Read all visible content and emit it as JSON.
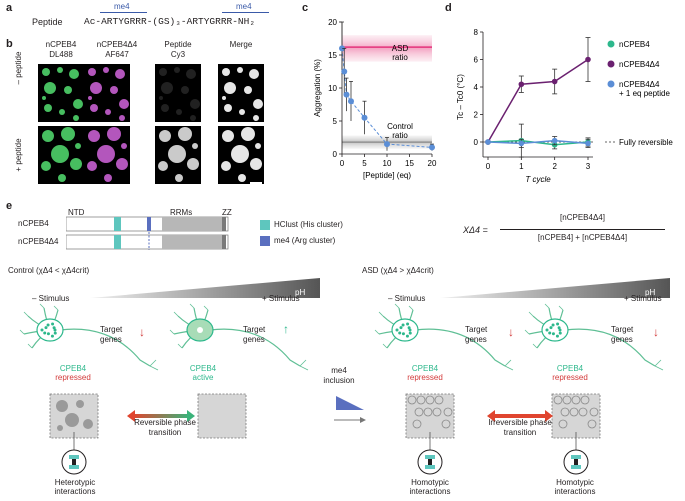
{
  "panel_labels": {
    "a": "a",
    "b": "b",
    "c": "c",
    "d": "d",
    "e": "e"
  },
  "panel_a": {
    "label": "Peptide",
    "sequence": "Ac-ARTYGRRR-(GS)₃-ARTYGRRR-NH₂",
    "motif": "me4"
  },
  "panel_b": {
    "col_headers": [
      {
        "line1": "nCPEB4",
        "line2": "DL488"
      },
      {
        "line1": "nCPEB4Δ4",
        "line2": "AF647"
      },
      {
        "line1": "Peptide",
        "line2": "Cy3"
      },
      {
        "line1": "Merge",
        "line2": ""
      }
    ],
    "row_labels": [
      "– peptide",
      "+ peptide"
    ],
    "colors": {
      "green": "#4fd36a",
      "magenta": "#c65fd0",
      "grey": "#d8d8d8",
      "white": "#ffffff"
    }
  },
  "chart_data": [
    {
      "type": "scatter",
      "xlabel": "[Peptide] (eq)",
      "ylabel": "Aggregation (%)",
      "xticks": [
        0,
        5,
        10,
        15,
        20
      ],
      "yticks": [
        0,
        5,
        10,
        15,
        20
      ],
      "xlim": [
        0,
        20
      ],
      "ylim": [
        0,
        20
      ],
      "grid": false,
      "series": [
        {
          "name": "",
          "x": [
            0,
            0.5,
            1,
            2,
            5,
            10,
            20
          ],
          "y": [
            16,
            12.5,
            9,
            8,
            5.5,
            1.5,
            1
          ],
          "err": [
            4,
            3.5,
            2.5,
            3,
            2.5,
            1,
            0.5
          ],
          "color": "#5b8ed6"
        }
      ],
      "reference_lines": [
        {
          "name": "ASD ratio",
          "y": 16.2,
          "color": "#e4337b",
          "band": [
            14,
            18
          ]
        },
        {
          "name": "Control ratio",
          "y": 1.8,
          "color": "#999999",
          "band": [
            0.8,
            2.8
          ]
        }
      ]
    },
    {
      "type": "line",
      "xlabel": "T cycle",
      "ylabel": "Tc – Tc0 (°C)",
      "xticks": [
        0,
        1,
        2,
        3
      ],
      "yticks": [
        0,
        2,
        4,
        6,
        8
      ],
      "xlim": [
        0,
        3
      ],
      "ylim": [
        0,
        8
      ],
      "grid": false,
      "legend_position": "right",
      "series": [
        {
          "name": "nCPEB4",
          "x": [
            0,
            1,
            2,
            3
          ],
          "y": [
            0,
            0.1,
            -0.2,
            0
          ],
          "err": [
            0,
            1.2,
            0.3,
            0.3
          ],
          "color": "#2db88c"
        },
        {
          "name": "nCPEB4Δ4",
          "x": [
            0,
            1,
            2,
            3
          ],
          "y": [
            0,
            4.2,
            4.4,
            6
          ],
          "err": [
            0,
            0.6,
            0.9,
            1.6
          ],
          "color": "#6b2170"
        },
        {
          "name": "nCPEB4Δ4 + 1 eq peptide",
          "x": [
            0,
            1,
            2,
            3
          ],
          "y": [
            0,
            -0.1,
            0.1,
            -0.1
          ],
          "err": [
            0,
            0.3,
            0.3,
            0.3
          ],
          "color": "#5b8ed6"
        }
      ],
      "legend_extra": "Fully reversible"
    }
  ],
  "panel_e": {
    "domains": {
      "ntd": "NTD",
      "rrms": "RRMs",
      "zz": "ZZ"
    },
    "proteins": [
      "nCPEB4",
      "nCPEB4Δ4"
    ],
    "legend": [
      {
        "label": "HClust (His cluster)",
        "color": "#5ec6be"
      },
      {
        "label": "me4 (Arg cluster)",
        "color": "#5a6fbf"
      }
    ],
    "formula": {
      "lhs": "XΔ4 =",
      "numerator": "[nCPEB4Δ4]",
      "denominator": "[nCPEB4] + [nCPEB4Δ4]"
    },
    "control_title": "Control (χΔ4 < χΔ4crit)",
    "asd_title": "ASD (χΔ4 > χΔ4crit)",
    "minus_stim": "– Stimulus",
    "plus_stim": "+ Stimulus",
    "ph": "pH",
    "target_genes": "Target genes",
    "cpeb4": "CPEB4",
    "repressed": "repressed",
    "active": "active",
    "me4_inclusion": "me4 inclusion",
    "reversible": "Reversible phase transition",
    "irreversible": "Irreversible phase transition",
    "heterotypic": "Heterotypic interactions",
    "homotypic": "Homotypic interactions"
  }
}
